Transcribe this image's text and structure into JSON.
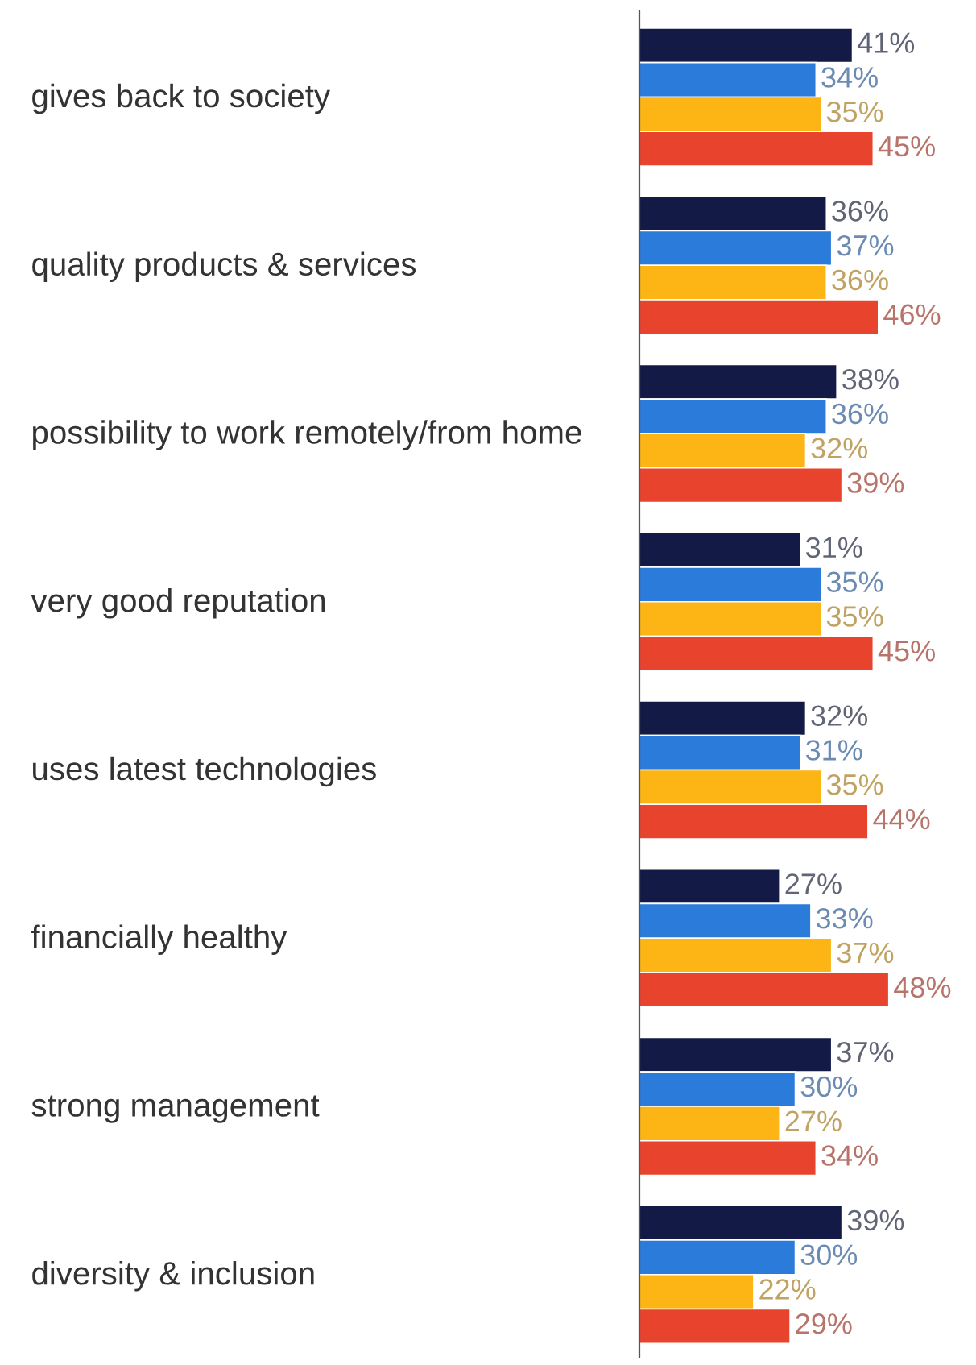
{
  "chart_data": {
    "type": "bar",
    "orientation": "horizontal",
    "categories": [
      "gives back to society",
      "quality products & services",
      "possibility to work remotely/from home",
      "very good reputation",
      "uses latest technologies",
      "financially healthy",
      "strong management",
      "diversity & inclusion"
    ],
    "series": [
      {
        "color": "#121a45",
        "values": [
          41,
          36,
          38,
          31,
          32,
          27,
          37,
          39
        ],
        "value_labels": [
          "41%",
          "36%",
          "38%",
          "31%",
          "32%",
          "27%",
          "37%",
          "39%"
        ]
      },
      {
        "color": "#2b7bdb",
        "values": [
          34,
          37,
          36,
          35,
          31,
          33,
          30,
          30
        ],
        "value_labels": [
          "34%",
          "37%",
          "36%",
          "35%",
          "31%",
          "33%",
          "30%",
          "30%"
        ]
      },
      {
        "color": "#fdb515",
        "values": [
          35,
          36,
          32,
          35,
          35,
          37,
          27,
          22
        ],
        "value_labels": [
          "35%",
          "36%",
          "32%",
          "35%",
          "35%",
          "37%",
          "27%",
          "22%"
        ]
      },
      {
        "color": "#e8432d",
        "values": [
          45,
          46,
          39,
          45,
          44,
          48,
          34,
          29
        ],
        "value_labels": [
          "45%",
          "46%",
          "39%",
          "45%",
          "44%",
          "48%",
          "34%",
          "29%"
        ]
      }
    ]
  }
}
